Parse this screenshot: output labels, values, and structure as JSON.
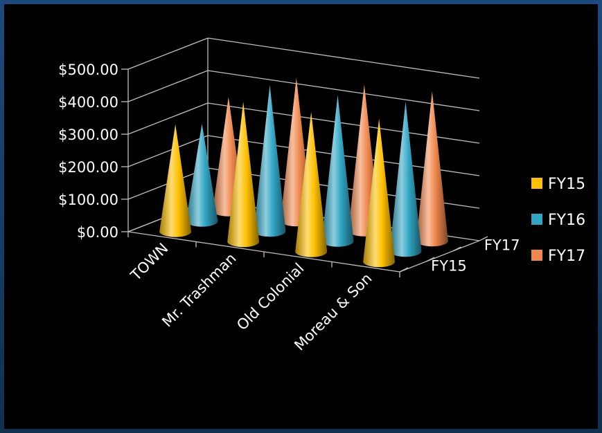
{
  "chart_data": {
    "type": "bar",
    "shape": "3d-cone",
    "categories": [
      "TOWN",
      "Mr. Trashman",
      "Old Colonial",
      "Moreau & Son"
    ],
    "series": [
      {
        "name": "FY15",
        "values": [
          330,
          430,
          430,
          440
        ],
        "color": "#ffc000"
      },
      {
        "name": "FY16",
        "values": [
          300,
          450,
          450,
          460
        ],
        "color": "#31a6c4"
      },
      {
        "name": "FY17",
        "values": [
          350,
          440,
          450,
          460
        ],
        "color": "#f0884e"
      }
    ],
    "depth_axis_labels": [
      "FY15",
      "FY17"
    ],
    "y_tick_labels": [
      "$0.00",
      "$100.00",
      "$200.00",
      "$300.00",
      "$400.00",
      "$500.00"
    ],
    "ylim": [
      0,
      500
    ],
    "grid": true,
    "legend_position": "right",
    "background": "#000000"
  }
}
